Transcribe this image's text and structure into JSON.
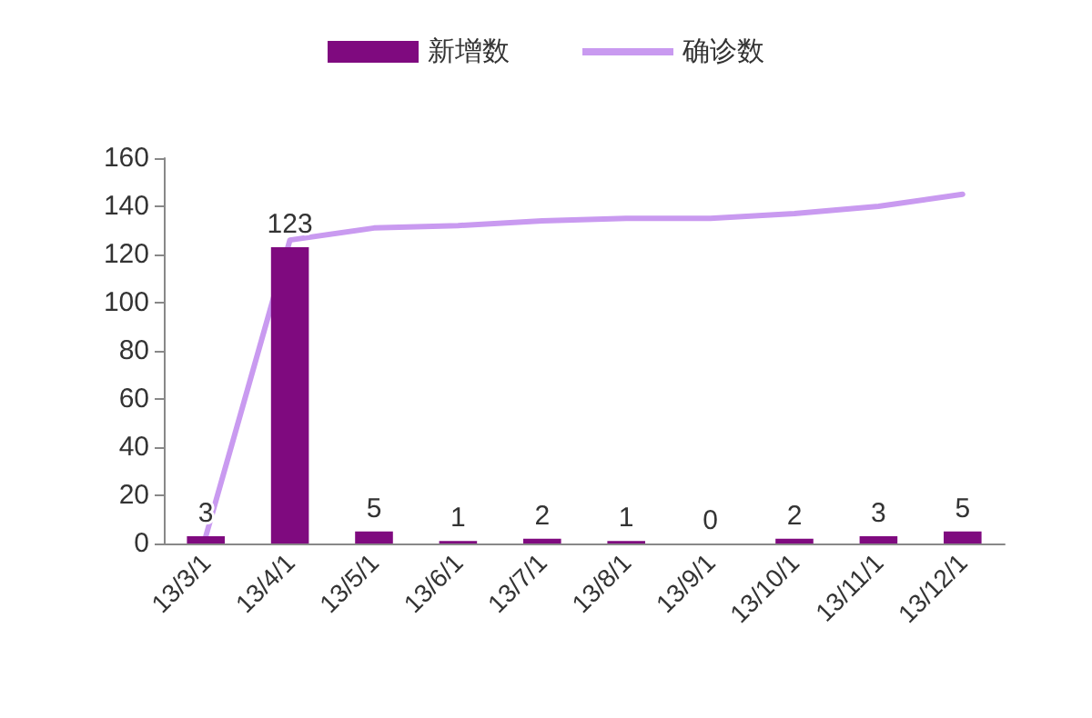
{
  "chart_data": {
    "type": "bar",
    "categories": [
      "13/3/1",
      "13/4/1",
      "13/5/1",
      "13/6/1",
      "13/7/1",
      "13/8/1",
      "13/9/1",
      "13/10/1",
      "13/11/1",
      "13/12/1"
    ],
    "series": [
      {
        "name": "新增数",
        "color": "#7f0a7f",
        "values": [
          3,
          123,
          5,
          1,
          2,
          1,
          0,
          2,
          3,
          5
        ],
        "value_labels": [
          "3",
          "123",
          "5",
          "1",
          "2",
          "1",
          "0",
          "2",
          "3",
          "5"
        ]
      },
      {
        "name": "确诊数",
        "type": "line",
        "color": "#c99af0",
        "values": [
          3,
          126,
          131,
          132,
          134,
          135,
          135,
          137,
          140,
          145
        ]
      }
    ],
    "ylim": [
      0,
      160
    ],
    "yticks": [
      0,
      20,
      40,
      60,
      80,
      100,
      120,
      140,
      160
    ],
    "grid": false,
    "legend": "top",
    "marker": "none"
  }
}
